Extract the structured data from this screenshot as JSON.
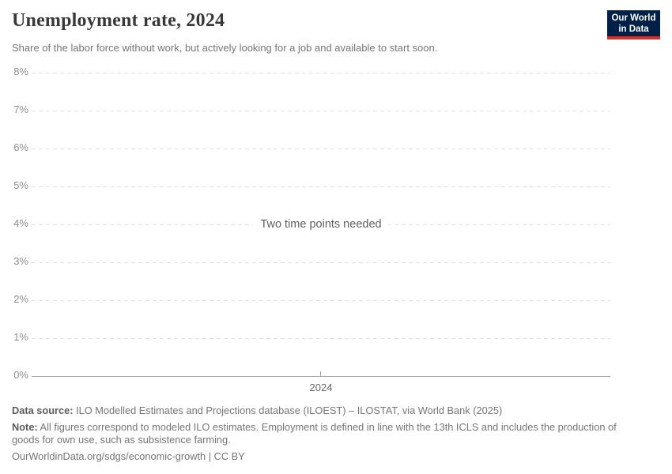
{
  "header": {
    "title": "Unemployment rate, 2024",
    "subtitle": "Share of the labor force without work, but actively looking for a job and available to start soon.",
    "logo": {
      "line1": "Our World",
      "line2": "in Data"
    }
  },
  "chart_data": {
    "type": "line",
    "title": "Unemployment rate, 2024",
    "xlabel": "",
    "ylabel": "",
    "ylim": [
      0,
      8
    ],
    "ytick_interval": 1,
    "yticks": [
      "8%",
      "7%",
      "6%",
      "5%",
      "4%",
      "3%",
      "2%",
      "1%",
      "0%"
    ],
    "xticks": [
      "2024"
    ],
    "series": [],
    "message": "Two time points needed",
    "grid": "horizontal-dashed",
    "legend": "none"
  },
  "footer": {
    "data_source_label": "Data source:",
    "data_source_text": " ILO Modelled Estimates and Projections database (ILOEST) – ILOSTAT, via World Bank (2025)",
    "note_label": "Note:",
    "note_text": " All figures correspond to modeled ILO estimates. Employment is defined in line with the 13th ICLS and includes the production of goods for own use, such as subsistence farming.",
    "origin_line": "OurWorldinData.org/sdgs/economic-growth | CC BY"
  },
  "colors": {
    "logo_background": "#002147",
    "logo_accent_red": "#d0342c",
    "title_text": "#383838",
    "muted_text": "#757575",
    "axis_line": "#a3a3a3",
    "gridline": "#e2e2e2"
  }
}
